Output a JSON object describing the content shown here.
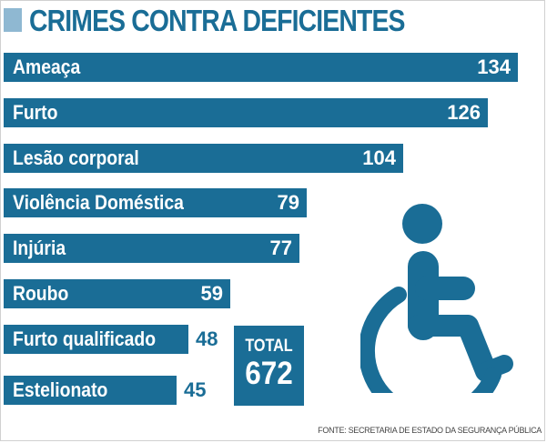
{
  "chart_data": {
    "type": "bar",
    "orientation": "horizontal",
    "title": "CRIMES CONTRA DEFICIENTES",
    "categories": [
      "Ameaça",
      "Furto",
      "Lesão corporal",
      "Violência Doméstica",
      "Injúria",
      "Roubo",
      "Furto qualificado",
      "Estelionato"
    ],
    "values": [
      134,
      126,
      104,
      79,
      77,
      59,
      48,
      45
    ],
    "total_label": "TOTAL",
    "total": 672,
    "source": "FONTE: SECRETARIA DE ESTADO DA SEGURANÇA PÚBLICA",
    "colors": {
      "bar": "#1a6d96",
      "accent": "#8fb8d2"
    },
    "icon": "wheelchair-icon"
  }
}
